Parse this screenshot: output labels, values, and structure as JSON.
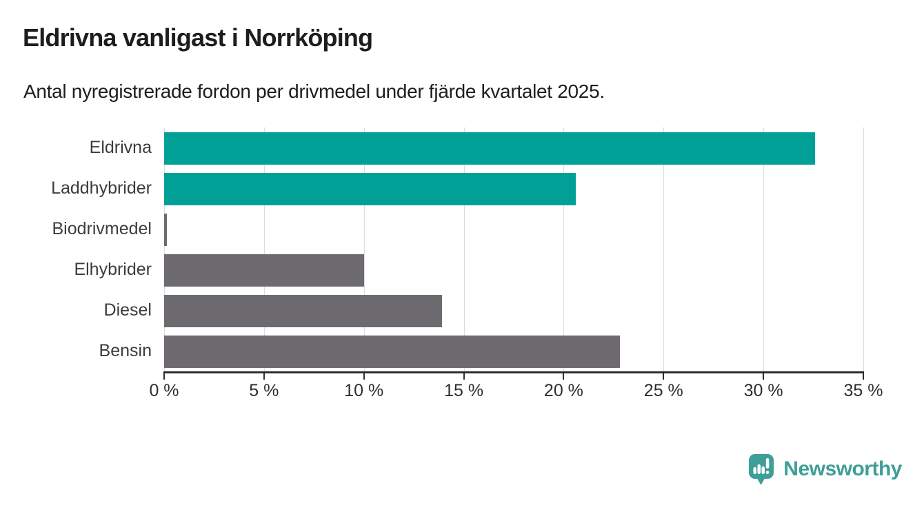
{
  "header": {
    "title": "Eldrivna vanligast i Norrköping",
    "subtitle": "Antal nyregistrerade fordon per drivmedel under fjärde kvartalet 2025."
  },
  "chart_data": {
    "type": "bar",
    "orientation": "horizontal",
    "title": "Eldrivna vanligast i Norrköping",
    "subtitle": "Antal nyregistrerade fordon per drivmedel under fjärde kvartalet 2025.",
    "categories": [
      "Eldrivna",
      "Laddhybrider",
      "Biodrivmedel",
      "Elhybrider",
      "Diesel",
      "Bensin"
    ],
    "values": [
      32.6,
      20.6,
      0.15,
      10.0,
      13.9,
      22.8
    ],
    "unit": "%",
    "xlim": [
      0,
      35
    ],
    "x_ticks": [
      0,
      5,
      10,
      15,
      20,
      25,
      30,
      35
    ],
    "x_tick_labels": [
      "0 %",
      "5 %",
      "10 %",
      "15 %",
      "20 %",
      "25 %",
      "30 %",
      "35 %"
    ],
    "grid": true,
    "legend": false,
    "colors": {
      "bar_colors": [
        "#00a096",
        "#00a096",
        "#6e6b70",
        "#6e6b70",
        "#6e6b70",
        "#6e6b70"
      ],
      "highlight": "#00a096",
      "default_bar": "#6e6b70",
      "gridline": "#dcdcdc",
      "axis": "#2d2d2d",
      "category_text": "#3c3c3b",
      "tick_text": "#2d2d2d"
    }
  },
  "footer": {
    "brand": "Newsworthy",
    "brand_color": "#3f9e98",
    "brand_icon": "newsworthy-speech-bubble-barchart-icon"
  }
}
